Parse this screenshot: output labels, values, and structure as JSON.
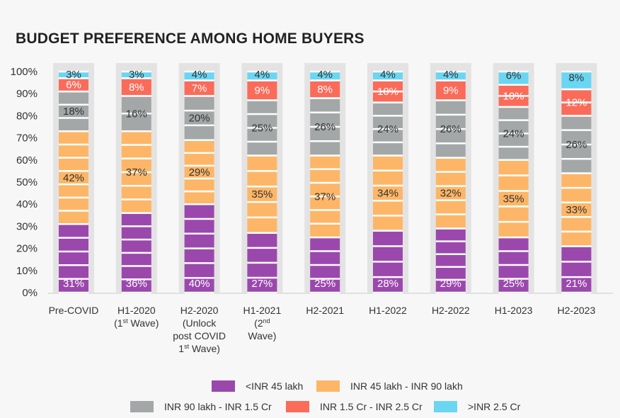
{
  "chart_data": {
    "type": "bar",
    "stacked": true,
    "percent": true,
    "title": "BUDGET PREFERENCE AMONG HOME BUYERS",
    "xlabel": "",
    "ylabel": "",
    "ylim": [
      0,
      100
    ],
    "yticks": [
      "0%",
      "10%",
      "20%",
      "30%",
      "40%",
      "50%",
      "60%",
      "70%",
      "80%",
      "90%",
      "100%"
    ],
    "categories": [
      {
        "lines": [
          [
            "Pre-COVID"
          ]
        ]
      },
      {
        "lines": [
          [
            "H1-2020"
          ],
          [
            "(1",
            {
              "sup": "st"
            },
            " Wave)"
          ]
        ]
      },
      {
        "lines": [
          [
            "H2-2020"
          ],
          [
            "(Unlock"
          ],
          [
            "post COVID"
          ],
          [
            "1",
            {
              "sup": "st"
            },
            " Wave)"
          ]
        ]
      },
      {
        "lines": [
          [
            "H1-2021"
          ],
          [
            "(2",
            {
              "sup": "nd"
            }
          ],
          [
            "Wave)"
          ]
        ]
      },
      {
        "lines": [
          [
            "H2-2021"
          ]
        ]
      },
      {
        "lines": [
          [
            "H1-2022"
          ]
        ]
      },
      {
        "lines": [
          [
            "H2-2022"
          ]
        ]
      },
      {
        "lines": [
          [
            "H1-2023"
          ]
        ]
      },
      {
        "lines": [
          [
            "H2-2023"
          ]
        ]
      }
    ],
    "series": [
      {
        "name": "<INR 45 lakh",
        "color": "#9b48ad",
        "labelColor": "#ffffff",
        "values": [
          31,
          36,
          40,
          27,
          25,
          28,
          29,
          25,
          21
        ]
      },
      {
        "name": "INR 45 lakh - INR 90 lakh",
        "color": "#fdb667",
        "labelColor": "#333333",
        "values": [
          42,
          37,
          29,
          35,
          37,
          34,
          32,
          35,
          33
        ]
      },
      {
        "name": "INR 90 lakh - INR 1.5 Cr",
        "color": "#a3a7a8",
        "labelColor": "#333333",
        "values": [
          18,
          16,
          20,
          25,
          26,
          24,
          26,
          24,
          26
        ]
      },
      {
        "name": "INR 1.5 Cr - INR 2.5 Cr",
        "color": "#fb6b5a",
        "labelColor": "#ffffff",
        "values": [
          6,
          8,
          7,
          9,
          8,
          10,
          9,
          10,
          12
        ]
      },
      {
        "name": ">INR 2.5 Cr",
        "color": "#6ad6f2",
        "labelColor": "#333333",
        "values": [
          3,
          3,
          4,
          4,
          4,
          4,
          4,
          6,
          8
        ]
      }
    ],
    "legend": {
      "placement": "bottom"
    },
    "grid": false
  }
}
